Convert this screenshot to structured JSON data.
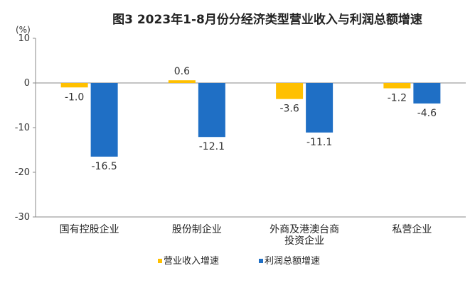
{
  "chart_data": {
    "type": "bar",
    "title": "图3  2023年1-8月份分经济类型营业收入与利润总额增速",
    "unit": "(%)",
    "categories": [
      [
        "国有控股企业"
      ],
      [
        "股份制企业"
      ],
      [
        "外商及港澳台商",
        "投资企业"
      ],
      [
        "私营企业"
      ]
    ],
    "series": [
      {
        "name": "营业收入增速",
        "color": "#FFC000",
        "values": [
          -1.0,
          0.6,
          -3.6,
          -1.2
        ]
      },
      {
        "name": "利润总额增速",
        "color": "#1F6FC5",
        "values": [
          -16.5,
          -12.1,
          -11.1,
          -4.6
        ]
      }
    ],
    "ylim": [
      -30,
      10
    ],
    "yticks": [
      10,
      0,
      -10,
      -20,
      -30
    ],
    "grid": false,
    "legend_position": "bottom"
  }
}
